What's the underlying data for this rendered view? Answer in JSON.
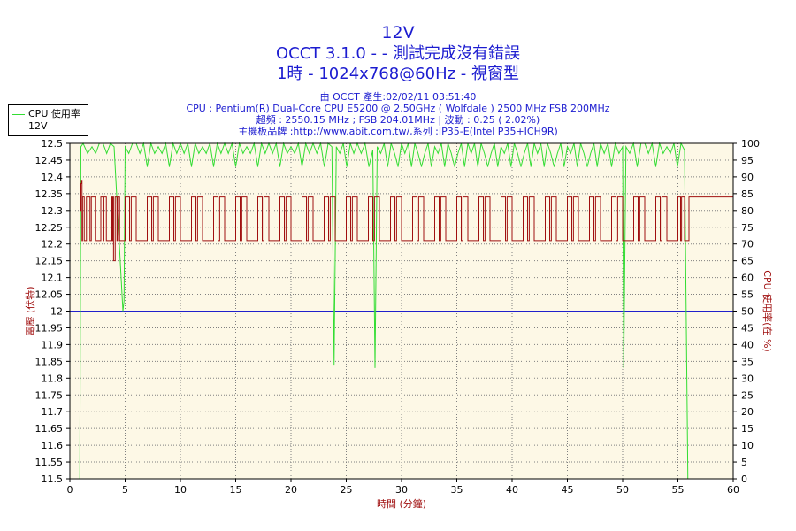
{
  "header": {
    "title": "12V",
    "subtitle": "OCCT 3.1.0 -  - 測試完成沒有錯誤",
    "mode": "1時 - 1024x768@60Hz - 視窗型"
  },
  "info": {
    "line1": "由 OCCT 產生:02/02/11 03:51:40",
    "line2": "CPU : Pentium(R) Dual-Core CPU E5200 @ 2.50GHz ( Wolfdale ) 2500 MHz FSB 200MHz",
    "line3": "超頻 : 2550.15 MHz ; FSB 204.01MHz | 波動 : 0.25 ( 2.02%)",
    "line4": "主機板品牌 :http://www.abit.com.tw/,系列 :IP35-E(Intel P35+ICH9R)"
  },
  "legend": {
    "cpu_label": "CPU 使用率",
    "volt_label": "12V"
  },
  "colors": {
    "cpu": "#33dd33",
    "volt": "#a01010",
    "ref": "#2020cc",
    "plot_bg": "#fdf8e6",
    "grid": "#808080",
    "ylabel_left": "#a01010",
    "ylabel_right": "#a01010"
  },
  "chart_data": {
    "type": "line",
    "xlabel": "時間 (分鐘)",
    "ylabel_left": "電壓 (伏特)",
    "ylabel_right": "CPU 使用率(在 %)",
    "xlim": [
      0,
      60
    ],
    "ylim_left": [
      11.5,
      12.5
    ],
    "ylim_right": [
      0,
      100
    ],
    "x_ticks": [
      0,
      5,
      10,
      15,
      20,
      25,
      30,
      35,
      40,
      45,
      50,
      55,
      60
    ],
    "y_left_ticks": [
      "11.5",
      "11.55",
      "11.6",
      "11.65",
      "11.7",
      "11.75",
      "11.8",
      "11.85",
      "11.9",
      "11.95",
      "12",
      "12.05",
      "12.1",
      "12.15",
      "12.2",
      "12.25",
      "12.3",
      "12.35",
      "12.4",
      "12.45",
      "12.5"
    ],
    "y_right_ticks": [
      0,
      5,
      10,
      15,
      20,
      25,
      30,
      35,
      40,
      45,
      50,
      55,
      60,
      65,
      70,
      75,
      80,
      85,
      90,
      95,
      100
    ],
    "reference_line": 12.0,
    "grid": true,
    "legend_position": "top-left",
    "series": [
      {
        "name": "12V",
        "axis": "left",
        "baseline": 12.34,
        "low": 12.21,
        "x": [
          0.9,
          1.0,
          1.05,
          1.1,
          1.15,
          1.3,
          1.5,
          2.3,
          2.8,
          3.3,
          3.8,
          3.95,
          4.1,
          4.5,
          5.0,
          6.0,
          7.0,
          8.0,
          9.0,
          10.0,
          11.0,
          12.0,
          13.0,
          14.0,
          15.0,
          16.0,
          17.0,
          18.0,
          19.0,
          20.0,
          21.0,
          22.0,
          23.0,
          24.0,
          25.0,
          26.0,
          27.0,
          28.0,
          29.0,
          30.0,
          31.0,
          32.0,
          33.0,
          34.0,
          35.0,
          36.0,
          37.0,
          38.0,
          39.0,
          40.0,
          41.0,
          42.0,
          43.0,
          44.0,
          45.0,
          46.0,
          47.0,
          48.0,
          49.0,
          50.0,
          51.0,
          52.0,
          53.0,
          54.0,
          55.0,
          55.6,
          56.0,
          57.0,
          58.0,
          59.0,
          60.0
        ],
        "values": [
          12.3,
          12.38,
          12.39,
          12.21,
          12.34,
          12.21,
          12.34,
          12.21,
          12.34,
          12.21,
          12.34,
          12.15,
          12.34,
          12.21,
          12.34,
          12.21,
          12.34,
          12.21,
          12.34,
          12.21,
          12.34,
          12.21,
          12.34,
          12.21,
          12.34,
          12.21,
          12.34,
          12.21,
          12.34,
          12.21,
          12.34,
          12.21,
          12.34,
          12.21,
          12.34,
          12.21,
          12.34,
          12.21,
          12.34,
          12.21,
          12.34,
          12.21,
          12.34,
          12.21,
          12.34,
          12.21,
          12.34,
          12.21,
          12.34,
          12.21,
          12.34,
          12.21,
          12.34,
          12.21,
          12.34,
          12.21,
          12.34,
          12.21,
          12.34,
          12.21,
          12.34,
          12.21,
          12.34,
          12.21,
          12.34,
          12.21,
          12.34,
          12.34,
          12.34,
          12.34,
          12.34
        ]
      },
      {
        "name": "CPU 使用率",
        "axis": "right",
        "x": [
          0.9,
          1.0,
          1.2,
          2.0,
          3.0,
          4.0,
          4.8,
          4.9,
          5.0,
          6.0,
          8.0,
          10.0,
          12.0,
          14.0,
          16.0,
          18.0,
          20.0,
          22.0,
          23.7,
          23.9,
          24.1,
          26.0,
          27.4,
          27.6,
          27.8,
          30.0,
          33.0,
          36.0,
          39.0,
          42.0,
          45.0,
          48.0,
          50.0,
          50.1,
          50.3,
          52.0,
          54.0,
          55.6,
          55.9,
          56.1,
          60.0
        ],
        "values": [
          0,
          99,
          100,
          99,
          100,
          99,
          50,
          53,
          99,
          100,
          99,
          100,
          99,
          100,
          99,
          100,
          99,
          100,
          99,
          34,
          99,
          100,
          98,
          33,
          99,
          100,
          99,
          100,
          99,
          100,
          99,
          100,
          99,
          33,
          99,
          100,
          99,
          98,
          0,
          0,
          0
        ]
      }
    ]
  }
}
